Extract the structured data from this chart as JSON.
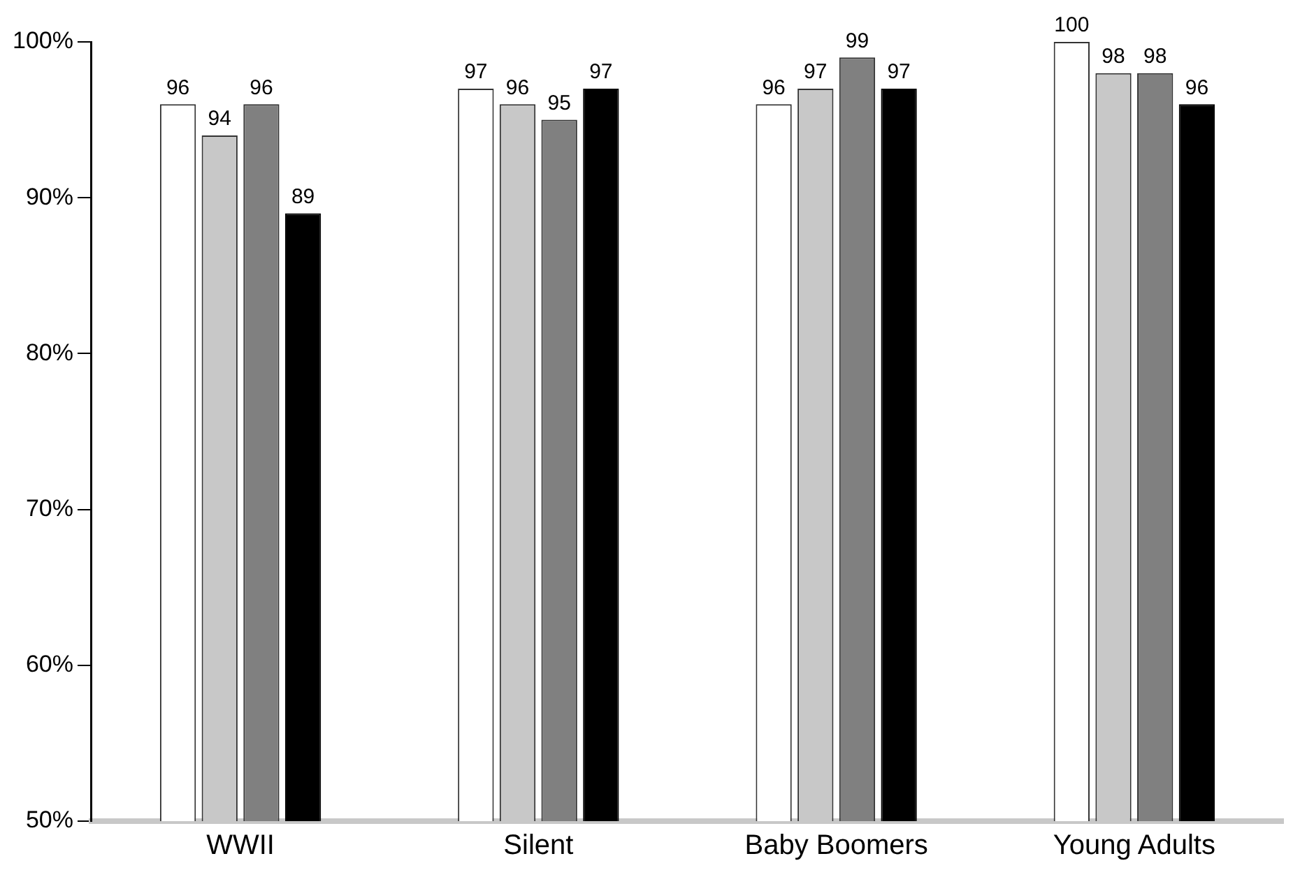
{
  "chart_data": {
    "type": "bar",
    "categories": [
      "WWII",
      "Silent",
      "Baby Boomers",
      "Young Adults"
    ],
    "series": [
      {
        "color": "#ffffff",
        "values": [
          96,
          97,
          96,
          100
        ]
      },
      {
        "color": "#c8c8c8",
        "values": [
          94,
          96,
          97,
          98
        ]
      },
      {
        "color": "#808080",
        "values": [
          96,
          95,
          99,
          98
        ]
      },
      {
        "color": "#000000",
        "values": [
          89,
          97,
          97,
          96
        ]
      }
    ],
    "ylim": [
      50,
      100
    ],
    "yticks": [
      {
        "value": 50,
        "label": "50%"
      },
      {
        "value": 60,
        "label": "60%"
      },
      {
        "value": 70,
        "label": "70%"
      },
      {
        "value": 80,
        "label": "80%"
      },
      {
        "value": 90,
        "label": "90%"
      },
      {
        "value": 100,
        "label": "100%"
      }
    ],
    "grid": false,
    "legend": false,
    "data_labels": true
  }
}
